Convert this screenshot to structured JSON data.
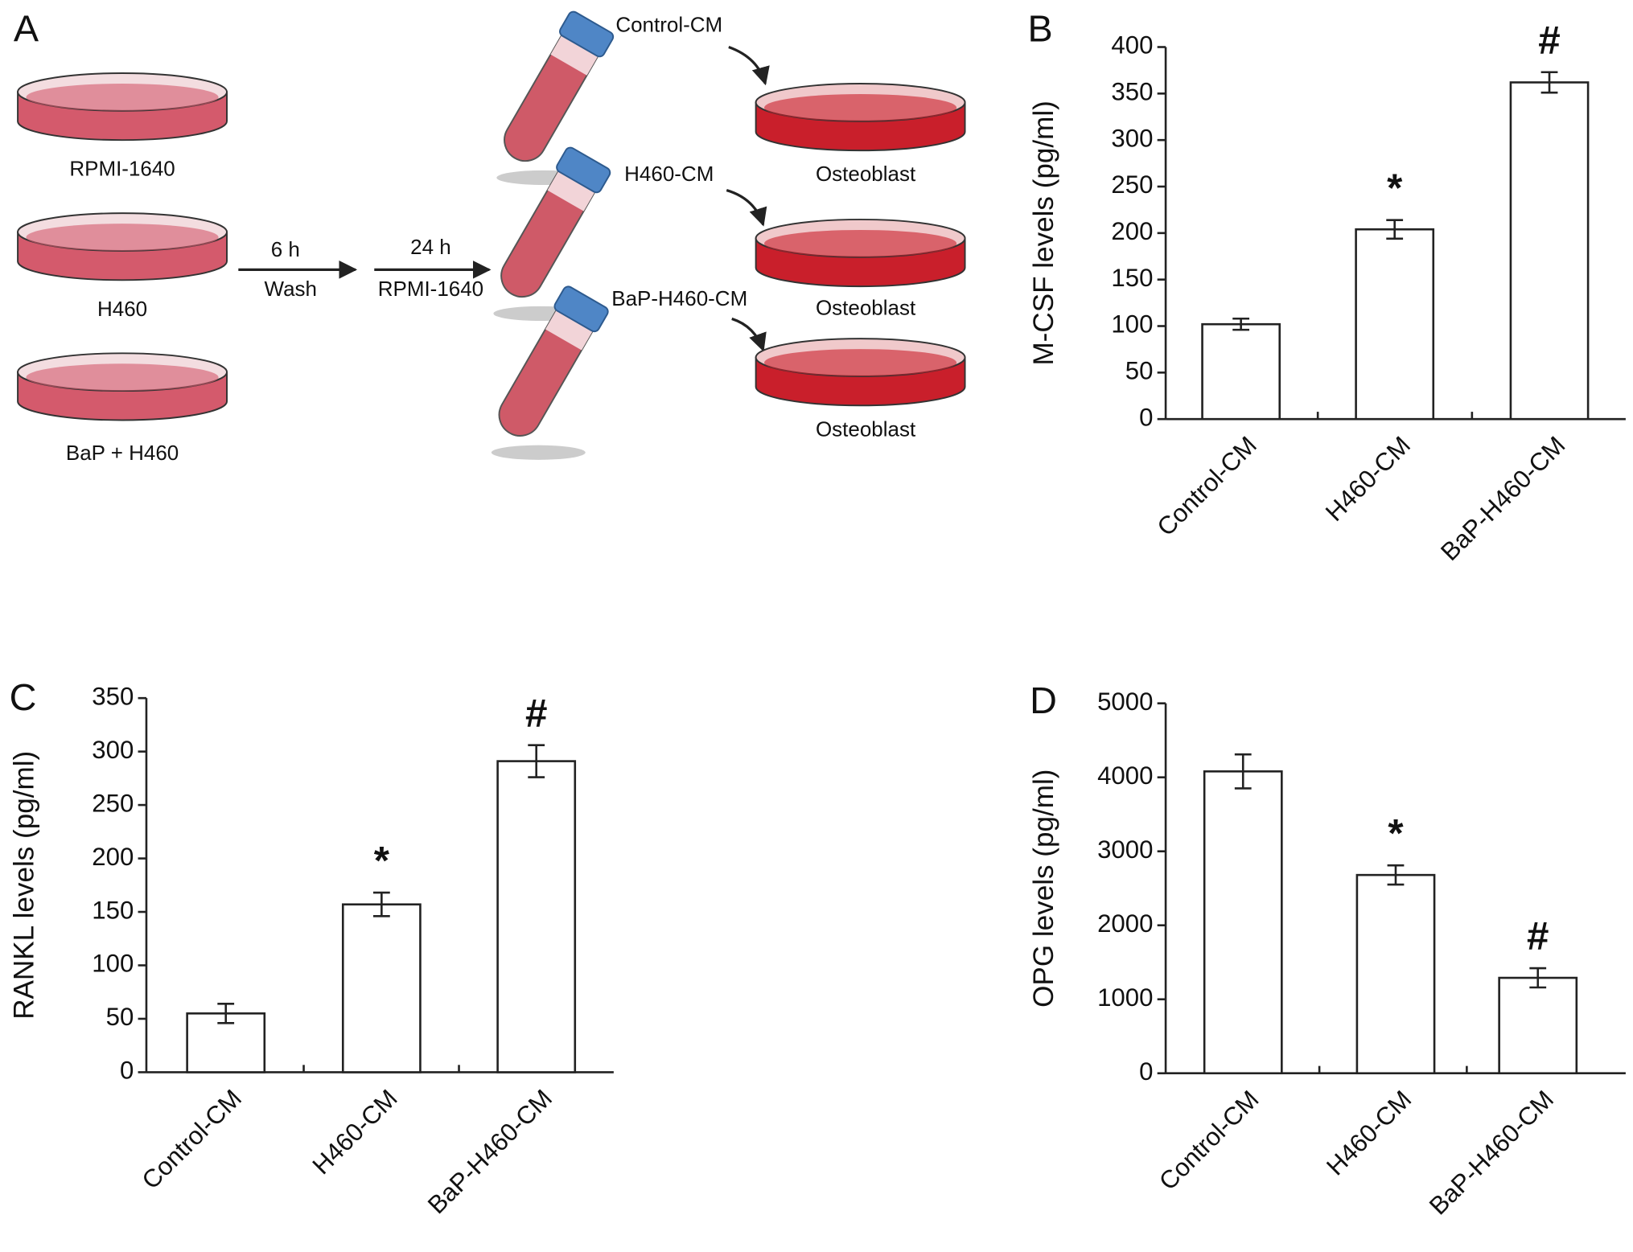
{
  "diagram": {
    "panel_label": "A",
    "dishes": [
      "RPMI-1640",
      "H460",
      "BaP + H460"
    ],
    "step1": {
      "top": "6 h",
      "bottom": "Wash"
    },
    "step2": {
      "top": "24 h",
      "bottom": "RPMI-1640"
    },
    "tubes": [
      "Control-CM",
      "H460-CM",
      "BaP-H460-CM"
    ],
    "targets": [
      "Osteoblast",
      "Osteoblast",
      "Osteoblast"
    ]
  },
  "chart_data": [
    {
      "type": "bar",
      "panel_label": "B",
      "y_label": "M-CSF levels (pg/ml)",
      "categories": [
        "Control-CM",
        "H460-CM",
        "BaP-H460-CM"
      ],
      "values": [
        102,
        204,
        362
      ],
      "errors": [
        6,
        10,
        11
      ],
      "annotations": [
        null,
        "*",
        "#"
      ],
      "color": "#ffffff",
      "ylim": [
        0,
        400
      ],
      "yticks": [
        0,
        50,
        100,
        150,
        200,
        250,
        300,
        350,
        400
      ]
    },
    {
      "type": "bar",
      "panel_label": "C",
      "y_label": "RANKL levels (pg/ml)",
      "categories": [
        "Control-CM",
        "H460-CM",
        "BaP-H460-CM"
      ],
      "values": [
        55,
        157,
        291
      ],
      "errors": [
        9,
        11,
        15
      ],
      "annotations": [
        null,
        "*",
        "#"
      ],
      "color": "#ffffff",
      "ylim": [
        0,
        350
      ],
      "yticks": [
        0,
        50,
        100,
        150,
        200,
        250,
        300,
        350
      ]
    },
    {
      "type": "bar",
      "panel_label": "D",
      "y_label": "OPG levels (pg/ml)",
      "categories": [
        "Control-CM",
        "H460-CM",
        "BaP-H460-CM"
      ],
      "values": [
        4080,
        2680,
        1290
      ],
      "errors": [
        230,
        130,
        130
      ],
      "annotations": [
        null,
        "*",
        "#"
      ],
      "color": "#ffffff",
      "ylim": [
        0,
        5000
      ],
      "yticks": [
        0,
        1000,
        2000,
        3000,
        4000,
        5000
      ]
    }
  ]
}
